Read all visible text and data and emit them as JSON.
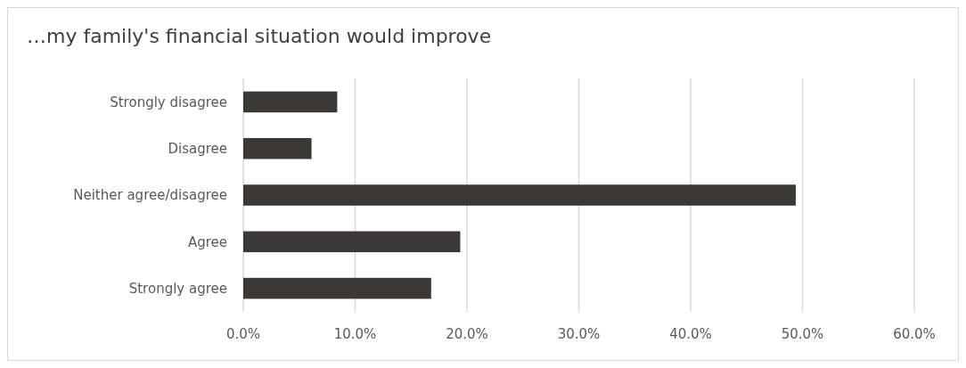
{
  "chart_data": {
    "type": "bar",
    "orientation": "horizontal",
    "title": "…my family's financial situation would improve",
    "categories": [
      "Strongly disagree",
      "Disagree",
      "Neither agree/disagree",
      "Agree",
      "Strongly agree"
    ],
    "values": [
      8.4,
      6.1,
      49.4,
      19.4,
      16.8
    ],
    "color": "#3b3838",
    "xlim": [
      0,
      60
    ],
    "xticks": [
      {
        "value": 0,
        "label": "0.0%"
      },
      {
        "value": 10,
        "label": "10.0%"
      },
      {
        "value": 20,
        "label": "20.0%"
      },
      {
        "value": 30,
        "label": "30.0%"
      },
      {
        "value": 40,
        "label": "40.0%"
      },
      {
        "value": 50,
        "label": "50.0%"
      },
      {
        "value": 60,
        "label": "60.0%"
      }
    ],
    "grid": "x"
  }
}
